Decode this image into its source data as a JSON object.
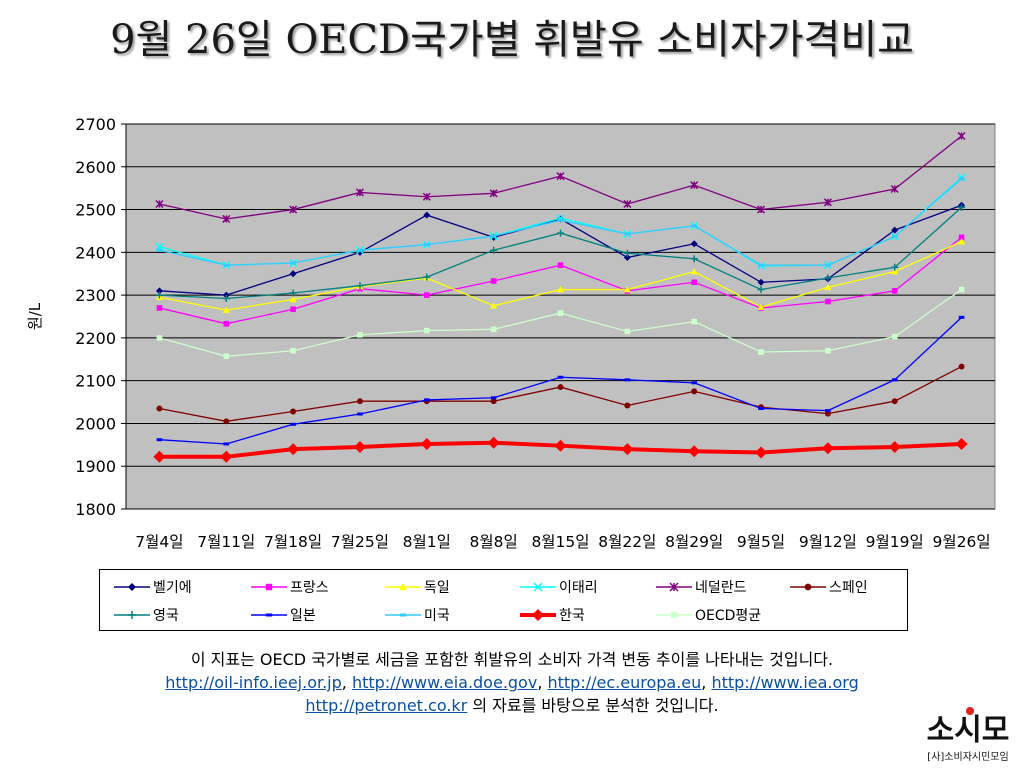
{
  "slide": {
    "title": "9월 26일 OECD국가별 휘발유 소비자가격비교"
  },
  "chart_data": {
    "type": "line",
    "ylabel": "원/L",
    "ylim": [
      1800,
      2700
    ],
    "yticks": [
      1800,
      1900,
      2000,
      2100,
      2200,
      2300,
      2400,
      2500,
      2600,
      2700
    ],
    "grid": true,
    "legend_position": "bottom",
    "categories": [
      "7월4일",
      "7월11일",
      "7월18일",
      "7월25일",
      "8월1일",
      "8월8일",
      "8월15일",
      "8월22일",
      "8월29일",
      "9월5일",
      "9월12일",
      "9월19일",
      "9월26일"
    ],
    "series": [
      {
        "name": "벨기에",
        "color": "#000080",
        "marker": "diamond",
        "values": [
          2310,
          2300,
          2350,
          2400,
          2487,
          2435,
          2478,
          2388,
          2420,
          2330,
          2338,
          2452,
          2510
        ]
      },
      {
        "name": "프랑스",
        "color": "#ff00ff",
        "marker": "square",
        "values": [
          2270,
          2233,
          2267,
          2315,
          2300,
          2333,
          2370,
          2310,
          2330,
          2270,
          2285,
          2310,
          2435
        ]
      },
      {
        "name": "독일",
        "color": "#ffff00",
        "marker": "triangle",
        "values": [
          2295,
          2265,
          2290,
          2320,
          2340,
          2275,
          2313,
          2313,
          2355,
          2272,
          2318,
          2355,
          2425
        ]
      },
      {
        "name": "이태리",
        "color": "#00ffff",
        "marker": "x",
        "values": [
          2413,
          2370,
          2375,
          2405,
          2418,
          2438,
          2480,
          2443,
          2462,
          2368,
          2370,
          2437,
          2575
        ]
      },
      {
        "name": "네덜란드",
        "color": "#800080",
        "marker": "star",
        "values": [
          2513,
          2478,
          2500,
          2540,
          2530,
          2538,
          2578,
          2513,
          2557,
          2500,
          2517,
          2548,
          2672
        ]
      },
      {
        "name": "스페인",
        "color": "#800000",
        "marker": "circle",
        "values": [
          2035,
          2005,
          2028,
          2052,
          2052,
          2052,
          2085,
          2042,
          2075,
          2038,
          2023,
          2052,
          2133
        ]
      },
      {
        "name": "영국",
        "color": "#008080",
        "marker": "plus",
        "values": [
          2300,
          2292,
          2305,
          2322,
          2342,
          2405,
          2445,
          2398,
          2385,
          2313,
          2340,
          2365,
          2505
        ]
      },
      {
        "name": "일본",
        "color": "#0000ff",
        "marker": "dash",
        "values": [
          1962,
          1952,
          1998,
          2022,
          2055,
          2060,
          2108,
          2102,
          2095,
          2035,
          2030,
          2102,
          2248
        ]
      },
      {
        "name": "미국",
        "color": "#33ccff",
        "marker": "dash",
        "values": [
          2405,
          2370,
          2375,
          2405,
          2418,
          2438,
          2475,
          2443,
          2462,
          2370,
          2370,
          2437,
          2572
        ]
      },
      {
        "name": "한국",
        "color": "#ff0000",
        "marker": "diamond",
        "values": [
          1922,
          1922,
          1940,
          1945,
          1952,
          1955,
          1948,
          1940,
          1935,
          1932,
          1942,
          1945,
          1952
        ]
      },
      {
        "name": "OECD평균",
        "color": "#ccffcc",
        "marker": "square",
        "values": [
          2200,
          2157,
          2170,
          2207,
          2217,
          2220,
          2258,
          2215,
          2238,
          2167,
          2170,
          2203,
          2313
        ]
      }
    ]
  },
  "footnote": {
    "line1": "이 지표는 OECD 국가별로 세금을 포함한 휘발유의 소비자 가격 변동 추이를 나타내는 것입니다.",
    "links": [
      "http://oil-info.ieej.or.jp",
      "http://www.eia.doe.gov",
      "http://ec.europa.eu",
      "http://www.iea.org",
      "http://petronet.co.kr"
    ],
    "sep": ", ",
    "suffix": " 의 자료를 바탕으로 분석한 것입니다."
  },
  "logo": {
    "main": "소시모",
    "sub": "[사]소비자시민모임"
  }
}
